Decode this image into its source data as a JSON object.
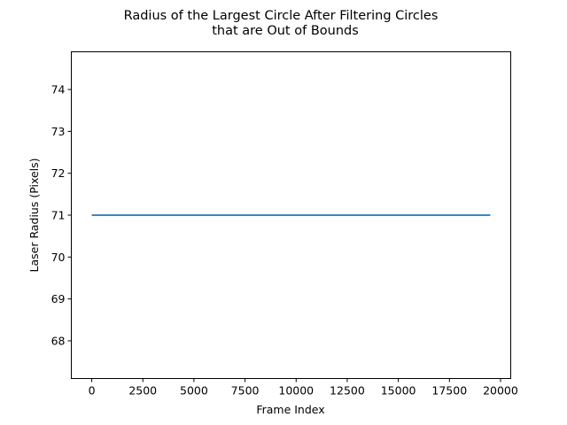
{
  "chart_data": {
    "type": "line",
    "title_lines": [
      "Radius of the Largest Circle After Filtering Circles",
      "that are Out of Bounds"
    ],
    "xlabel": "Frame Index",
    "ylabel": "Laser Radius (Pixels)",
    "xlim": [
      -1000,
      20500
    ],
    "ylim": [
      67.1,
      74.9
    ],
    "x_ticks": [
      0,
      2500,
      5000,
      7500,
      10000,
      12500,
      15000,
      17500,
      20000
    ],
    "x_tick_labels": [
      "0",
      "2500",
      "5000",
      "7500",
      "10000",
      "12500",
      "15000",
      "17500",
      "20000"
    ],
    "y_ticks": [
      68,
      69,
      70,
      71,
      72,
      73,
      74
    ],
    "y_tick_labels": [
      "68",
      "69",
      "70",
      "71",
      "72",
      "73",
      "74"
    ],
    "grid": false,
    "legend": "none",
    "series": [
      {
        "color": "#1f77b4",
        "x": [
          0,
          19500
        ],
        "y": [
          71,
          71
        ]
      }
    ]
  }
}
